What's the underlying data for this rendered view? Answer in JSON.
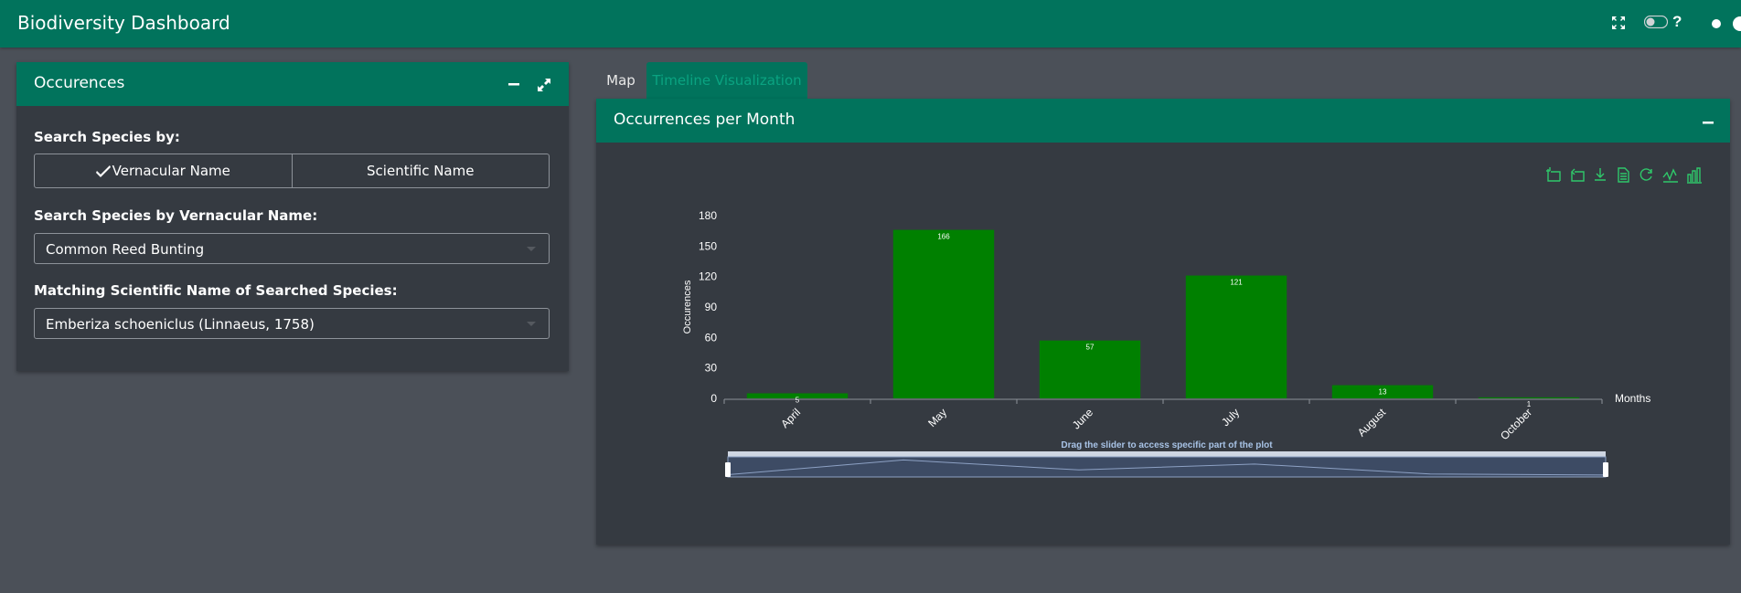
{
  "app": {
    "title": "Biodiversity Dashboard"
  },
  "left_card": {
    "title": "Occurences",
    "search_by_label": "Search Species by:",
    "options": [
      {
        "label": "Vernacular Name",
        "selected": true
      },
      {
        "label": "Scientific Name",
        "selected": false
      }
    ],
    "vernacular_label": "Search Species by Vernacular Name:",
    "vernacular_value": "Common Reed Bunting",
    "scientific_label": "Matching Scientific Name of Searched Species:",
    "scientific_value": "Emberiza schoeniclus (Linnaeus, 1758)"
  },
  "tabs": [
    {
      "label": "Map",
      "active": false
    },
    {
      "label": "Timeline Visualization",
      "active": true
    }
  ],
  "right_card": {
    "title": "Occurrences per Month",
    "toolbox_icons": [
      "zoom-icon",
      "zoom-reset-icon",
      "download-icon",
      "data-view-icon",
      "restore-icon",
      "line-chart-icon",
      "bar-chart-icon"
    ]
  },
  "chart_data": {
    "type": "bar",
    "categories": [
      "April",
      "May",
      "June",
      "July",
      "August",
      "October"
    ],
    "values": [
      5,
      166,
      57,
      121,
      13,
      1
    ],
    "data_labels": [
      "5",
      "166",
      "57",
      "121",
      "13",
      "1"
    ],
    "xlabel": "Months",
    "ylabel": "Occurences",
    "ylim": [
      0,
      180
    ],
    "yticks": [
      "0",
      "30",
      "60",
      "90",
      "120",
      "150",
      "180"
    ],
    "bar_color": "#008000",
    "slider_label": "Drag the slider to access specific part of the plot"
  },
  "colors": {
    "header": "#01735c",
    "panel": "#353a41",
    "background": "#4b5058",
    "bar": "#008000"
  }
}
